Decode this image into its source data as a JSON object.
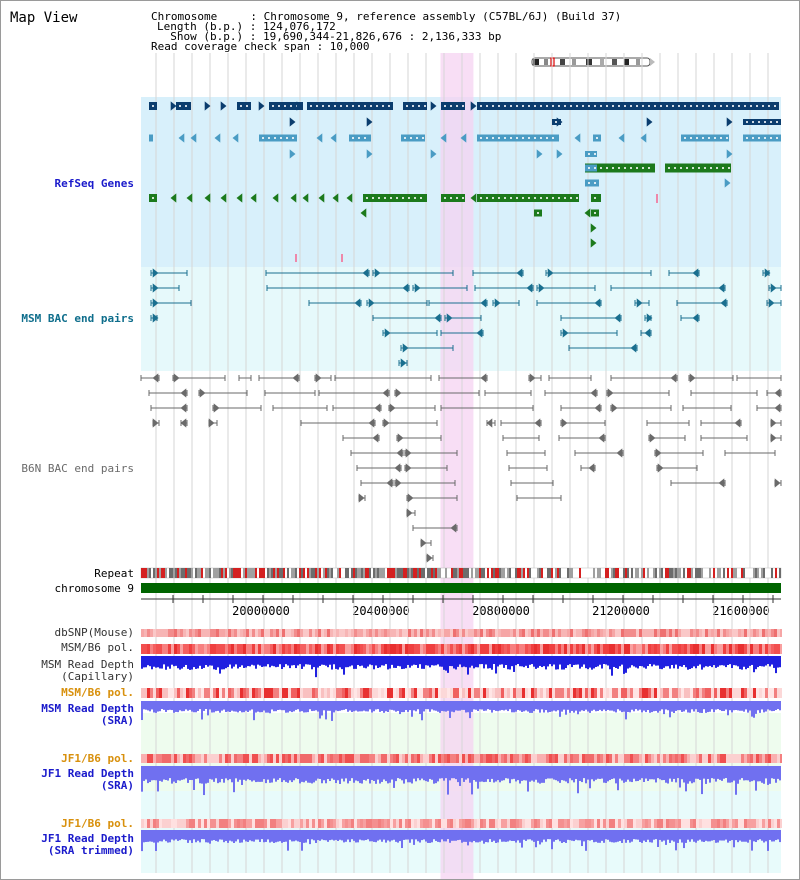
{
  "page": {
    "title": "Map View"
  },
  "header": {
    "chromosome_line": "Chromosome     : Chromosome 9, reference assembly (C57BL/6J) (Build 37)",
    "length_line": "Length (b.p.) : 124,076,172",
    "show_line": "  Show (b.p.) : 19,690,344-21,826,676 : 2,136,333 bp",
    "span_line": "Read coverage check span : 10,000"
  },
  "tracks": {
    "refseq": "RefSeq Genes",
    "msm_bac": "MSM BAC end pairs",
    "b6n_bac": "B6N BAC end pairs",
    "repeat": "Repeat",
    "chromosome": "chromosome 9",
    "dbsnp": "dbSNP(Mouse)",
    "msm_b6_pol_1": "MSM/B6 pol.",
    "msm_read_depth_cap_1": "MSM Read Depth",
    "msm_read_depth_cap_2": "(Capillary)",
    "msm_b6_pol_2": "MSM/B6 pol.",
    "msm_read_depth_sra_1": "MSM Read Depth",
    "msm_read_depth_sra_2": "(SRA)",
    "jf1_b6_pol_1": "JF1/B6 pol.",
    "jf1_read_depth_sra_1": "JF1 Read Depth",
    "jf1_read_depth_sra_2": "(SRA)",
    "jf1_b6_pol_2": "JF1/B6 pol.",
    "jf1_read_depth_trim_1": "JF1 Read Depth",
    "jf1_read_depth_trim_2": "(SRA trimmed)"
  },
  "axis": {
    "ticks": [
      "20000000",
      "20400000",
      "20800000",
      "21200000",
      "21600000"
    ],
    "range_bp": [
      19690344,
      21826676
    ],
    "highlight_bp": [
      20690000,
      20800000
    ]
  },
  "colors": {
    "refseq_bg": "#d8f0fb",
    "bac_bg": "#e6f9fb",
    "highlight": "#f6d3f1",
    "gene_navy": "#0b3d6e",
    "gene_teal": "#4a9cc4",
    "gene_green": "#1c7a1c",
    "msm_pair": "#1a6f8f",
    "b6n_pair": "#6a6a6a",
    "chromosome": "#006400",
    "label_blue": "#1a1acb",
    "label_teal": "#0f6e8c",
    "label_orange": "#d8900c",
    "depth_blue": "#2020e0",
    "depth_light": "#7070f0"
  }
}
